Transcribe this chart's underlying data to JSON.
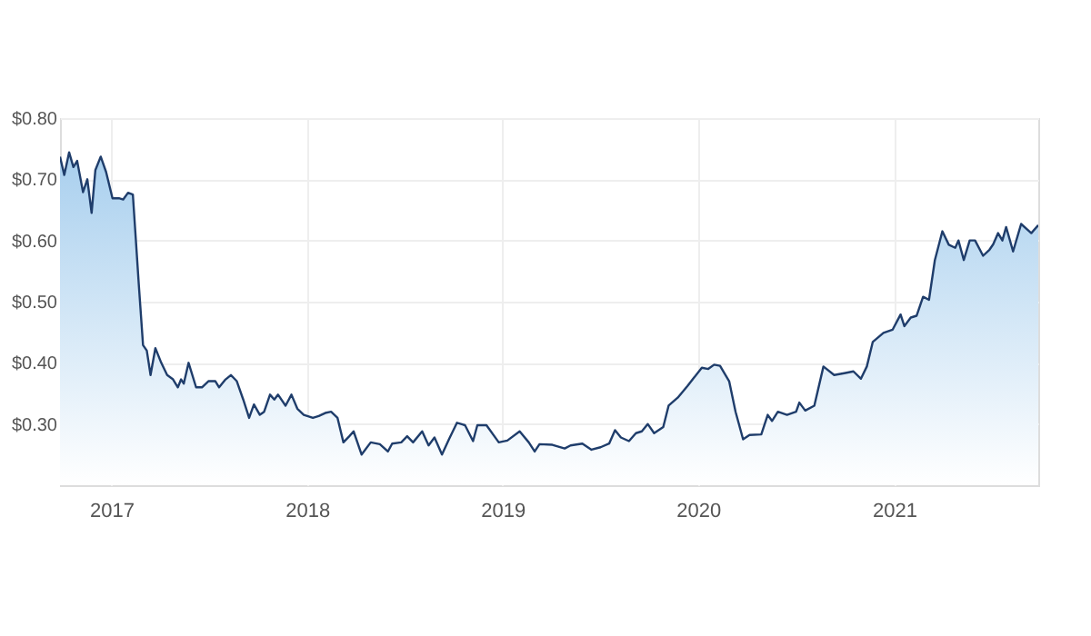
{
  "chart_data": {
    "type": "area",
    "x": [
      "2016-09-27",
      "2016-10-05",
      "2016-10-14",
      "2016-10-22",
      "2016-10-29",
      "2016-11-09",
      "2016-11-17",
      "2016-11-25",
      "2016-12-02",
      "2016-12-12",
      "2016-12-22",
      "2017-01-03",
      "2017-01-15",
      "2017-01-23",
      "2017-02-01",
      "2017-02-10",
      "2017-02-21",
      "2017-03-01",
      "2017-03-08",
      "2017-03-15",
      "2017-03-24",
      "2017-04-04",
      "2017-04-15",
      "2017-04-26",
      "2017-05-05",
      "2017-05-11",
      "2017-05-16",
      "2017-05-25",
      "2017-06-08",
      "2017-06-19",
      "2017-07-01",
      "2017-07-14",
      "2017-07-21",
      "2017-08-01",
      "2017-08-12",
      "2017-08-23",
      "2017-09-04",
      "2017-09-15",
      "2017-09-24",
      "2017-10-05",
      "2017-10-13",
      "2017-10-24",
      "2017-11-01",
      "2017-11-08",
      "2017-11-22",
      "2017-12-03",
      "2017-12-14",
      "2017-12-26",
      "2018-01-12",
      "2018-01-23",
      "2018-02-04",
      "2018-02-15",
      "2018-02-27",
      "2018-03-10",
      "2018-03-21",
      "2018-03-29",
      "2018-04-13",
      "2018-04-30",
      "2018-05-17",
      "2018-06-01",
      "2018-06-09",
      "2018-06-26",
      "2018-07-07",
      "2018-07-18",
      "2018-08-04",
      "2018-08-16",
      "2018-08-27",
      "2018-09-10",
      "2018-09-23",
      "2018-10-08",
      "2018-10-23",
      "2018-11-07",
      "2018-11-15",
      "2018-12-02",
      "2018-12-25",
      "2019-01-10",
      "2019-02-02",
      "2019-02-19",
      "2019-03-02",
      "2019-03-11",
      "2019-04-04",
      "2019-04-27",
      "2019-05-08",
      "2019-05-30",
      "2019-06-16",
      "2019-07-03",
      "2019-07-19",
      "2019-07-30",
      "2019-08-10",
      "2019-08-25",
      "2019-09-07",
      "2019-09-18",
      "2019-09-29",
      "2019-10-11",
      "2019-10-28",
      "2019-11-07",
      "2019-11-24",
      "2019-12-12",
      "2020-01-08",
      "2020-01-20",
      "2020-01-31",
      "2020-02-11",
      "2020-02-28",
      "2020-03-11",
      "2020-03-25",
      "2020-04-06",
      "2020-04-28",
      "2020-05-10",
      "2020-05-18",
      "2020-05-29",
      "2020-06-15",
      "2020-07-02",
      "2020-07-08",
      "2020-07-19",
      "2020-08-05",
      "2020-08-22",
      "2020-09-11",
      "2020-09-30",
      "2020-10-17",
      "2020-10-31",
      "2020-11-11",
      "2020-11-22",
      "2020-12-12",
      "2020-12-29",
      "2021-01-13",
      "2021-01-20",
      "2021-02-01",
      "2021-02-12",
      "2021-02-24",
      "2021-03-07",
      "2021-03-18",
      "2021-04-01",
      "2021-04-13",
      "2021-04-25",
      "2021-05-01",
      "2021-05-11",
      "2021-05-22",
      "2021-06-01",
      "2021-06-16",
      "2021-06-28",
      "2021-07-05",
      "2021-07-14",
      "2021-07-22",
      "2021-07-29",
      "2021-08-11",
      "2021-08-26",
      "2021-09-14",
      "2021-09-27"
    ],
    "values": [
      0.737,
      0.707,
      0.744,
      0.72,
      0.73,
      0.679,
      0.7,
      0.645,
      0.715,
      0.737,
      0.712,
      0.669,
      0.669,
      0.667,
      0.678,
      0.675,
      0.529,
      0.429,
      0.42,
      0.38,
      0.424,
      0.4,
      0.38,
      0.373,
      0.36,
      0.373,
      0.366,
      0.4,
      0.36,
      0.36,
      0.37,
      0.37,
      0.36,
      0.372,
      0.38,
      0.37,
      0.34,
      0.31,
      0.332,
      0.315,
      0.32,
      0.348,
      0.34,
      0.348,
      0.33,
      0.348,
      0.325,
      0.315,
      0.31,
      0.313,
      0.318,
      0.32,
      0.31,
      0.27,
      0.28,
      0.288,
      0.25,
      0.27,
      0.267,
      0.255,
      0.268,
      0.27,
      0.28,
      0.27,
      0.288,
      0.265,
      0.278,
      0.25,
      0.275,
      0.302,
      0.298,
      0.272,
      0.298,
      0.298,
      0.27,
      0.273,
      0.288,
      0.27,
      0.255,
      0.267,
      0.266,
      0.26,
      0.265,
      0.268,
      0.258,
      0.262,
      0.268,
      0.29,
      0.278,
      0.272,
      0.285,
      0.288,
      0.3,
      0.285,
      0.295,
      0.33,
      0.343,
      0.362,
      0.392,
      0.39,
      0.397,
      0.395,
      0.37,
      0.32,
      0.275,
      0.282,
      0.283,
      0.315,
      0.305,
      0.32,
      0.315,
      0.32,
      0.335,
      0.322,
      0.33,
      0.394,
      0.38,
      0.383,
      0.386,
      0.374,
      0.394,
      0.434,
      0.449,
      0.454,
      0.479,
      0.46,
      0.474,
      0.477,
      0.508,
      0.503,
      0.568,
      0.615,
      0.593,
      0.588,
      0.6,
      0.568,
      0.6,
      0.6,
      0.575,
      0.585,
      0.594,
      0.612,
      0.6,
      0.622,
      0.582,
      0.627,
      0.612,
      0.625
    ],
    "color": "#1f3d6b",
    "xlim": [
      "2016-09-27",
      "2021-09-27"
    ],
    "xticks": [
      "2017",
      "2018",
      "2019",
      "2020",
      "2021"
    ],
    "ylim": [
      0.2,
      0.8
    ],
    "yticks": [
      {
        "value": 0.3,
        "label": "$0.30"
      },
      {
        "value": 0.4,
        "label": "$0.40"
      },
      {
        "value": 0.5,
        "label": "$0.50"
      },
      {
        "value": 0.6,
        "label": "$0.60"
      },
      {
        "value": 0.7,
        "label": "$0.70"
      },
      {
        "value": 0.8,
        "label": "$0.80"
      }
    ],
    "grid": true,
    "marker": "none"
  }
}
